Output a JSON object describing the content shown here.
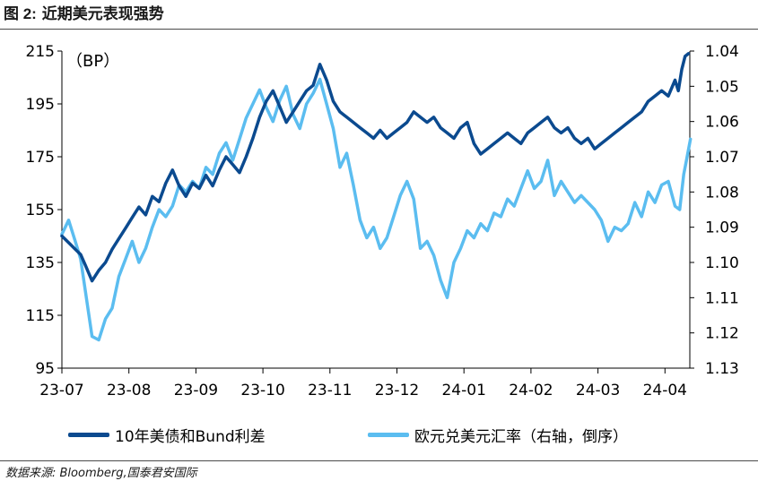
{
  "header": {
    "figure_label": "图 2:",
    "title": "近期美元表现强势"
  },
  "source": "数据来源: Bloomberg,国泰君安国际",
  "colors": {
    "series1": "#0b4a8f",
    "series2": "#5bbdf0",
    "axis": "#000000",
    "rule": "#4a4a4a"
  },
  "chart_data": {
    "type": "line",
    "unit_label": "（BP）",
    "legend_position": "bottom",
    "grid": false,
    "x_ticks": [
      "23-07",
      "23-08",
      "23-09",
      "23-10",
      "23-11",
      "23-12",
      "24-01",
      "24-02",
      "24-03",
      "24-04"
    ],
    "x_range": [
      0,
      9.4
    ],
    "y_left": {
      "range": [
        95,
        215
      ],
      "ticks": [
        "215",
        "195",
        "175",
        "155",
        "135",
        "115",
        "95"
      ]
    },
    "y_right": {
      "range": [
        1.04,
        1.13
      ],
      "inverted": true,
      "ticks": [
        "1.04",
        "1.05",
        "1.06",
        "1.07",
        "1.08",
        "1.09",
        "1.10",
        "1.11",
        "1.12",
        "1.13"
      ]
    },
    "series": [
      {
        "name": "10年美债和Bund利差",
        "axis": "left",
        "x": [
          0,
          0.12,
          0.2,
          0.28,
          0.35,
          0.45,
          0.55,
          0.65,
          0.75,
          0.85,
          0.95,
          1.05,
          1.15,
          1.25,
          1.35,
          1.45,
          1.55,
          1.65,
          1.75,
          1.85,
          1.95,
          2.05,
          2.15,
          2.25,
          2.35,
          2.45,
          2.55,
          2.65,
          2.75,
          2.85,
          2.95,
          3.05,
          3.15,
          3.25,
          3.35,
          3.45,
          3.55,
          3.65,
          3.75,
          3.85,
          3.95,
          4.05,
          4.15,
          4.25,
          4.35,
          4.45,
          4.55,
          4.65,
          4.75,
          4.85,
          4.95,
          5.05,
          5.15,
          5.25,
          5.35,
          5.45,
          5.55,
          5.65,
          5.75,
          5.85,
          5.95,
          6.05,
          6.15,
          6.25,
          6.35,
          6.45,
          6.55,
          6.65,
          6.75,
          6.85,
          6.95,
          7.05,
          7.15,
          7.25,
          7.35,
          7.45,
          7.55,
          7.65,
          7.75,
          7.85,
          7.95,
          8.05,
          8.15,
          8.25,
          8.35,
          8.45,
          8.55,
          8.65,
          8.75,
          8.85,
          8.95,
          9.05,
          9.15,
          9.2,
          9.25,
          9.3,
          9.35
        ],
        "values": [
          145,
          142,
          140,
          138,
          134,
          128,
          132,
          135,
          140,
          144,
          148,
          152,
          156,
          153,
          160,
          158,
          165,
          170,
          164,
          160,
          165,
          163,
          168,
          164,
          170,
          175,
          172,
          169,
          175,
          182,
          190,
          196,
          200,
          194,
          188,
          192,
          196,
          200,
          202,
          210,
          204,
          196,
          192,
          190,
          188,
          186,
          184,
          182,
          185,
          182,
          184,
          186,
          188,
          192,
          190,
          188,
          190,
          186,
          184,
          182,
          186,
          188,
          180,
          176,
          178,
          180,
          182,
          184,
          182,
          180,
          184,
          186,
          188,
          190,
          186,
          184,
          186,
          182,
          180,
          182,
          178,
          180,
          182,
          184,
          186,
          188,
          190,
          192,
          196,
          198,
          200,
          198,
          204,
          200,
          208,
          213,
          214
        ]
      },
      {
        "name": "欧元兑美元汇率（右轴，倒序）",
        "axis": "right",
        "x": [
          0,
          0.1,
          0.2,
          0.28,
          0.35,
          0.45,
          0.55,
          0.65,
          0.75,
          0.85,
          0.95,
          1.05,
          1.15,
          1.25,
          1.35,
          1.45,
          1.55,
          1.65,
          1.75,
          1.85,
          1.95,
          2.05,
          2.15,
          2.25,
          2.35,
          2.45,
          2.55,
          2.65,
          2.75,
          2.85,
          2.95,
          3.05,
          3.15,
          3.25,
          3.35,
          3.45,
          3.55,
          3.65,
          3.75,
          3.85,
          3.95,
          4.05,
          4.15,
          4.25,
          4.35,
          4.45,
          4.55,
          4.65,
          4.75,
          4.85,
          4.95,
          5.05,
          5.15,
          5.25,
          5.35,
          5.45,
          5.55,
          5.65,
          5.75,
          5.85,
          5.95,
          6.05,
          6.15,
          6.25,
          6.35,
          6.45,
          6.55,
          6.65,
          6.75,
          6.85,
          6.95,
          7.05,
          7.15,
          7.25,
          7.35,
          7.45,
          7.55,
          7.65,
          7.75,
          7.85,
          7.95,
          8.05,
          8.15,
          8.25,
          8.35,
          8.45,
          8.55,
          8.65,
          8.75,
          8.85,
          8.95,
          9.05,
          9.15,
          9.22,
          9.28,
          9.33,
          9.38
        ],
        "values": [
          1.092,
          1.088,
          1.094,
          1.099,
          1.108,
          1.121,
          1.122,
          1.116,
          1.113,
          1.104,
          1.099,
          1.094,
          1.1,
          1.096,
          1.09,
          1.085,
          1.087,
          1.084,
          1.078,
          1.08,
          1.077,
          1.079,
          1.073,
          1.075,
          1.069,
          1.066,
          1.071,
          1.065,
          1.059,
          1.055,
          1.051,
          1.056,
          1.06,
          1.054,
          1.05,
          1.058,
          1.062,
          1.055,
          1.052,
          1.048,
          1.055,
          1.062,
          1.073,
          1.069,
          1.078,
          1.088,
          1.093,
          1.09,
          1.096,
          1.093,
          1.087,
          1.081,
          1.077,
          1.082,
          1.096,
          1.094,
          1.098,
          1.105,
          1.11,
          1.1,
          1.096,
          1.091,
          1.093,
          1.089,
          1.091,
          1.086,
          1.087,
          1.082,
          1.084,
          1.079,
          1.074,
          1.079,
          1.077,
          1.071,
          1.081,
          1.077,
          1.08,
          1.083,
          1.081,
          1.083,
          1.085,
          1.088,
          1.094,
          1.09,
          1.091,
          1.089,
          1.083,
          1.087,
          1.08,
          1.083,
          1.078,
          1.077,
          1.084,
          1.085,
          1.075,
          1.07,
          1.065
        ]
      }
    ]
  }
}
